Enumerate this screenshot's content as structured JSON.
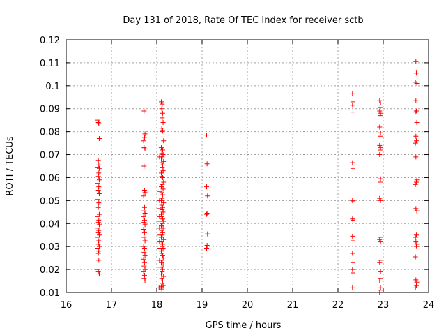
{
  "chart_data": {
    "type": "scatter",
    "title": "Day 131 of 2018, Rate Of TEC Index for receiver sctb",
    "xlabel": "GPS time / hours",
    "ylabel": "ROTI / TECUs",
    "xlim": [
      16,
      24
    ],
    "ylim": [
      0.01,
      0.12
    ],
    "xticks": [
      16,
      17,
      18,
      19,
      20,
      21,
      22,
      23,
      24
    ],
    "xtick_labels": [
      "16",
      "17",
      "18",
      "19",
      "20",
      "21",
      "22",
      "23",
      "24"
    ],
    "yticks": [
      0.01,
      0.02,
      0.03,
      0.04,
      0.05,
      0.06,
      0.07,
      0.08,
      0.09,
      0.1,
      0.11,
      0.12
    ],
    "ytick_labels": [
      "0.01",
      "0.02",
      "0.03",
      "0.04",
      "0.05",
      "0.06",
      "0.07",
      "0.08",
      "0.09",
      "0.1",
      "0.11",
      "0.12"
    ],
    "grid": true,
    "marker": "+",
    "marker_color": "#ff0000",
    "series": [
      {
        "name": "sctb",
        "points": [
          [
            16.7,
            0.085
          ],
          [
            16.71,
            0.084
          ],
          [
            16.72,
            0.0835
          ],
          [
            16.73,
            0.077
          ],
          [
            16.71,
            0.0675
          ],
          [
            16.72,
            0.0655
          ],
          [
            16.7,
            0.0645
          ],
          [
            16.73,
            0.064
          ],
          [
            16.72,
            0.062
          ],
          [
            16.71,
            0.0605
          ],
          [
            16.73,
            0.059
          ],
          [
            16.7,
            0.0575
          ],
          [
            16.72,
            0.056
          ],
          [
            16.71,
            0.0545
          ],
          [
            16.73,
            0.053
          ],
          [
            16.7,
            0.0505
          ],
          [
            16.72,
            0.049
          ],
          [
            16.71,
            0.047
          ],
          [
            16.73,
            0.044
          ],
          [
            16.7,
            0.043
          ],
          [
            16.72,
            0.0415
          ],
          [
            16.71,
            0.0405
          ],
          [
            16.73,
            0.0395
          ],
          [
            16.7,
            0.038
          ],
          [
            16.72,
            0.037
          ],
          [
            16.71,
            0.036
          ],
          [
            16.73,
            0.035
          ],
          [
            16.7,
            0.034
          ],
          [
            16.72,
            0.0325
          ],
          [
            16.71,
            0.031
          ],
          [
            16.73,
            0.03
          ],
          [
            16.7,
            0.029
          ],
          [
            16.72,
            0.028
          ],
          [
            16.71,
            0.027
          ],
          [
            16.72,
            0.024
          ],
          [
            16.7,
            0.02
          ],
          [
            16.71,
            0.019
          ],
          [
            16.73,
            0.018
          ],
          [
            17.72,
            0.089
          ],
          [
            17.74,
            0.079
          ],
          [
            17.73,
            0.0775
          ],
          [
            17.71,
            0.076
          ],
          [
            17.72,
            0.073
          ],
          [
            17.74,
            0.0725
          ],
          [
            17.72,
            0.065
          ],
          [
            17.73,
            0.0545
          ],
          [
            17.74,
            0.0535
          ],
          [
            17.71,
            0.052
          ],
          [
            17.73,
            0.047
          ],
          [
            17.72,
            0.0455
          ],
          [
            17.74,
            0.0445
          ],
          [
            17.71,
            0.043
          ],
          [
            17.73,
            0.0415
          ],
          [
            17.72,
            0.0405
          ],
          [
            17.74,
            0.0395
          ],
          [
            17.71,
            0.0375
          ],
          [
            17.73,
            0.036
          ],
          [
            17.72,
            0.034
          ],
          [
            17.74,
            0.0325
          ],
          [
            17.71,
            0.03
          ],
          [
            17.73,
            0.029
          ],
          [
            17.72,
            0.0275
          ],
          [
            17.74,
            0.026
          ],
          [
            17.71,
            0.0245
          ],
          [
            17.73,
            0.023
          ],
          [
            17.72,
            0.0215
          ],
          [
            17.74,
            0.02
          ],
          [
            17.71,
            0.019
          ],
          [
            17.73,
            0.0175
          ],
          [
            17.72,
            0.016
          ],
          [
            17.74,
            0.015
          ],
          [
            18.06,
            0.069
          ],
          [
            18.07,
            0.054
          ],
          [
            18.06,
            0.05
          ],
          [
            18.07,
            0.0465
          ],
          [
            18.06,
            0.043
          ],
          [
            18.07,
            0.041
          ],
          [
            18.06,
            0.038
          ],
          [
            18.07,
            0.035
          ],
          [
            18.06,
            0.032
          ],
          [
            18.07,
            0.029
          ],
          [
            18.06,
            0.024
          ],
          [
            18.07,
            0.021
          ],
          [
            18.05,
            0.012
          ],
          [
            18.1,
            0.093
          ],
          [
            18.12,
            0.092
          ],
          [
            18.11,
            0.09
          ],
          [
            18.13,
            0.088
          ],
          [
            18.12,
            0.086
          ],
          [
            18.14,
            0.084
          ],
          [
            18.11,
            0.0815
          ],
          [
            18.13,
            0.0805
          ],
          [
            18.12,
            0.08
          ],
          [
            18.15,
            0.076
          ],
          [
            18.1,
            0.073
          ],
          [
            18.13,
            0.072
          ],
          [
            18.11,
            0.0705
          ],
          [
            18.14,
            0.07
          ],
          [
            18.12,
            0.069
          ],
          [
            18.1,
            0.0685
          ],
          [
            18.15,
            0.067
          ],
          [
            18.11,
            0.0665
          ],
          [
            18.13,
            0.0655
          ],
          [
            18.12,
            0.0645
          ],
          [
            18.14,
            0.063
          ],
          [
            18.1,
            0.062
          ],
          [
            18.11,
            0.0605
          ],
          [
            18.13,
            0.06
          ],
          [
            18.15,
            0.058
          ],
          [
            18.12,
            0.057
          ],
          [
            18.1,
            0.056
          ],
          [
            18.14,
            0.055
          ],
          [
            18.11,
            0.0535
          ],
          [
            18.13,
            0.0525
          ],
          [
            18.12,
            0.051
          ],
          [
            18.1,
            0.05
          ],
          [
            18.15,
            0.049
          ],
          [
            18.11,
            0.048
          ],
          [
            18.13,
            0.047
          ],
          [
            18.12,
            0.046
          ],
          [
            18.14,
            0.045
          ],
          [
            18.1,
            0.044
          ],
          [
            18.11,
            0.043
          ],
          [
            18.13,
            0.042
          ],
          [
            18.15,
            0.041
          ],
          [
            18.12,
            0.04
          ],
          [
            18.1,
            0.039
          ],
          [
            18.14,
            0.038
          ],
          [
            18.11,
            0.037
          ],
          [
            18.13,
            0.036
          ],
          [
            18.12,
            0.035
          ],
          [
            18.1,
            0.034
          ],
          [
            18.15,
            0.033
          ],
          [
            18.11,
            0.032
          ],
          [
            18.13,
            0.031
          ],
          [
            18.12,
            0.03
          ],
          [
            18.14,
            0.029
          ],
          [
            18.1,
            0.028
          ],
          [
            18.11,
            0.027
          ],
          [
            18.13,
            0.026
          ],
          [
            18.15,
            0.025
          ],
          [
            18.12,
            0.024
          ],
          [
            18.1,
            0.023
          ],
          [
            18.14,
            0.022
          ],
          [
            18.11,
            0.021
          ],
          [
            18.13,
            0.02
          ],
          [
            18.12,
            0.019
          ],
          [
            18.1,
            0.018
          ],
          [
            18.15,
            0.017
          ],
          [
            18.11,
            0.016
          ],
          [
            18.13,
            0.015
          ],
          [
            18.12,
            0.014
          ],
          [
            18.14,
            0.013
          ],
          [
            18.1,
            0.0125
          ],
          [
            18.11,
            0.0115
          ],
          [
            19.1,
            0.0785
          ],
          [
            19.11,
            0.066
          ],
          [
            19.1,
            0.056
          ],
          [
            19.12,
            0.052
          ],
          [
            19.11,
            0.0445
          ],
          [
            19.1,
            0.044
          ],
          [
            19.12,
            0.0355
          ],
          [
            19.11,
            0.0305
          ],
          [
            19.1,
            0.029
          ],
          [
            22.32,
            0.0965
          ],
          [
            22.33,
            0.093
          ],
          [
            22.32,
            0.0915
          ],
          [
            22.33,
            0.0885
          ],
          [
            22.32,
            0.0665
          ],
          [
            22.33,
            0.064
          ],
          [
            22.32,
            0.05
          ],
          [
            22.33,
            0.0495
          ],
          [
            22.32,
            0.042
          ],
          [
            22.33,
            0.0415
          ],
          [
            22.32,
            0.0345
          ],
          [
            22.33,
            0.0325
          ],
          [
            22.32,
            0.027
          ],
          [
            22.33,
            0.023
          ],
          [
            22.32,
            0.02
          ],
          [
            22.33,
            0.0185
          ],
          [
            22.32,
            0.012
          ],
          [
            22.92,
            0.0935
          ],
          [
            22.94,
            0.0925
          ],
          [
            22.93,
            0.0905
          ],
          [
            22.92,
            0.089
          ],
          [
            22.94,
            0.088
          ],
          [
            22.93,
            0.087
          ],
          [
            22.92,
            0.082
          ],
          [
            22.94,
            0.0795
          ],
          [
            22.93,
            0.078
          ],
          [
            22.92,
            0.074
          ],
          [
            22.94,
            0.073
          ],
          [
            22.93,
            0.072
          ],
          [
            22.92,
            0.07
          ],
          [
            22.94,
            0.0595
          ],
          [
            22.93,
            0.058
          ],
          [
            22.92,
            0.051
          ],
          [
            22.94,
            0.05
          ],
          [
            22.93,
            0.034
          ],
          [
            22.92,
            0.033
          ],
          [
            22.94,
            0.032
          ],
          [
            22.93,
            0.024
          ],
          [
            22.92,
            0.023
          ],
          [
            22.94,
            0.019
          ],
          [
            22.93,
            0.016
          ],
          [
            22.92,
            0.015
          ],
          [
            22.94,
            0.012
          ],
          [
            22.93,
            0.011
          ],
          [
            22.92,
            0.01
          ],
          [
            23.72,
            0.1105
          ],
          [
            23.73,
            0.1055
          ],
          [
            23.71,
            0.1015
          ],
          [
            23.74,
            0.101
          ],
          [
            23.72,
            0.0935
          ],
          [
            23.73,
            0.089
          ],
          [
            23.71,
            0.0885
          ],
          [
            23.74,
            0.084
          ],
          [
            23.72,
            0.078
          ],
          [
            23.73,
            0.076
          ],
          [
            23.71,
            0.075
          ],
          [
            23.72,
            0.069
          ],
          [
            23.74,
            0.059
          ],
          [
            23.73,
            0.058
          ],
          [
            23.71,
            0.057
          ],
          [
            23.72,
            0.0465
          ],
          [
            23.74,
            0.0455
          ],
          [
            23.73,
            0.035
          ],
          [
            23.71,
            0.034
          ],
          [
            23.72,
            0.032
          ],
          [
            23.74,
            0.031
          ],
          [
            23.73,
            0.03
          ],
          [
            23.71,
            0.0255
          ],
          [
            23.72,
            0.0155
          ],
          [
            23.74,
            0.0145
          ],
          [
            23.73,
            0.013
          ],
          [
            23.71,
            0.012
          ]
        ]
      }
    ]
  }
}
